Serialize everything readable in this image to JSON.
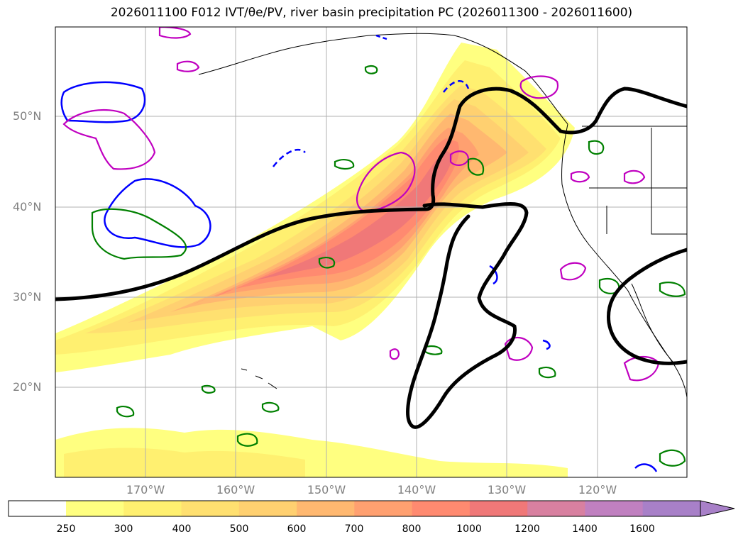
{
  "title": "2026011100 F012 IVT/θe/PV, river basin precipitation PC (2026011300 - 2026011600)",
  "lat_labels": [
    "50°N",
    "40°N",
    "30°N",
    "20°N"
  ],
  "lon_labels": [
    "170°W",
    "160°W",
    "150°W",
    "140°W",
    "130°W",
    "120°W"
  ],
  "colorbar": {
    "ticks": [
      "250",
      "300",
      "400",
      "500",
      "600",
      "700",
      "800",
      "1000",
      "1200",
      "1400",
      "1600"
    ],
    "colors": [
      "#ffff80",
      "#fff070",
      "#ffe070",
      "#ffd070",
      "#ffb870",
      "#ffa070",
      "#ff8a70",
      "#f07878",
      "#d880a0",
      "#c080c0",
      "#a880c8"
    ]
  },
  "colors": {
    "ivt_low": "#ffff80",
    "ivt_mid": "#ffd070",
    "ivt_high": "#ff8a70",
    "jet_contour": "#000000",
    "pv_contour": "#c000c0",
    "theta_contour": "#008000",
    "blue_contour": "#0000ff",
    "coast": "#000000",
    "grid": "#b0b0b0"
  }
}
